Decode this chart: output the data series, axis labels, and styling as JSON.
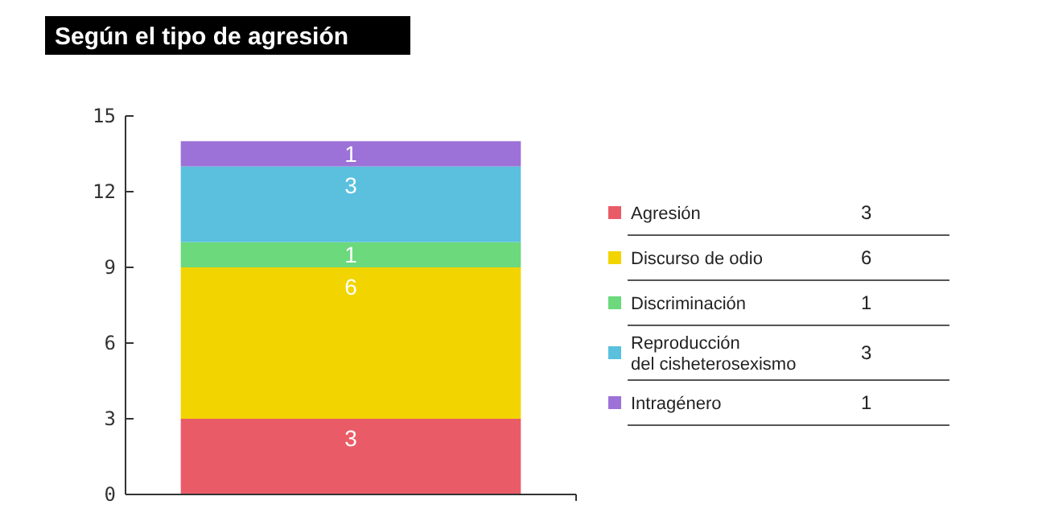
{
  "chart_data": {
    "type": "bar",
    "title": "Según el tipo de agresión",
    "categories": [
      null
    ],
    "stacked": true,
    "ylim": [
      0,
      15
    ],
    "yticks": [
      0,
      3,
      6,
      9,
      12,
      15
    ],
    "data_labels": true,
    "legend": "right",
    "grid": false,
    "annotations": [
      "3",
      "6",
      "1",
      "3",
      "1"
    ],
    "series": [
      {
        "name": "Agresión",
        "color": "#e95c67",
        "values": [
          3
        ]
      },
      {
        "name": "Discurso de odio",
        "color": "#f2d400",
        "values": [
          6
        ]
      },
      {
        "name": "Discriminación",
        "color": "#6bd97c",
        "values": [
          1
        ]
      },
      {
        "name": "Reproducción del cisheterosexismo",
        "color": "#5ac0de",
        "values": [
          3
        ]
      },
      {
        "name": "Intragénero",
        "color": "#9c72d8",
        "values": [
          1
        ]
      }
    ]
  }
}
